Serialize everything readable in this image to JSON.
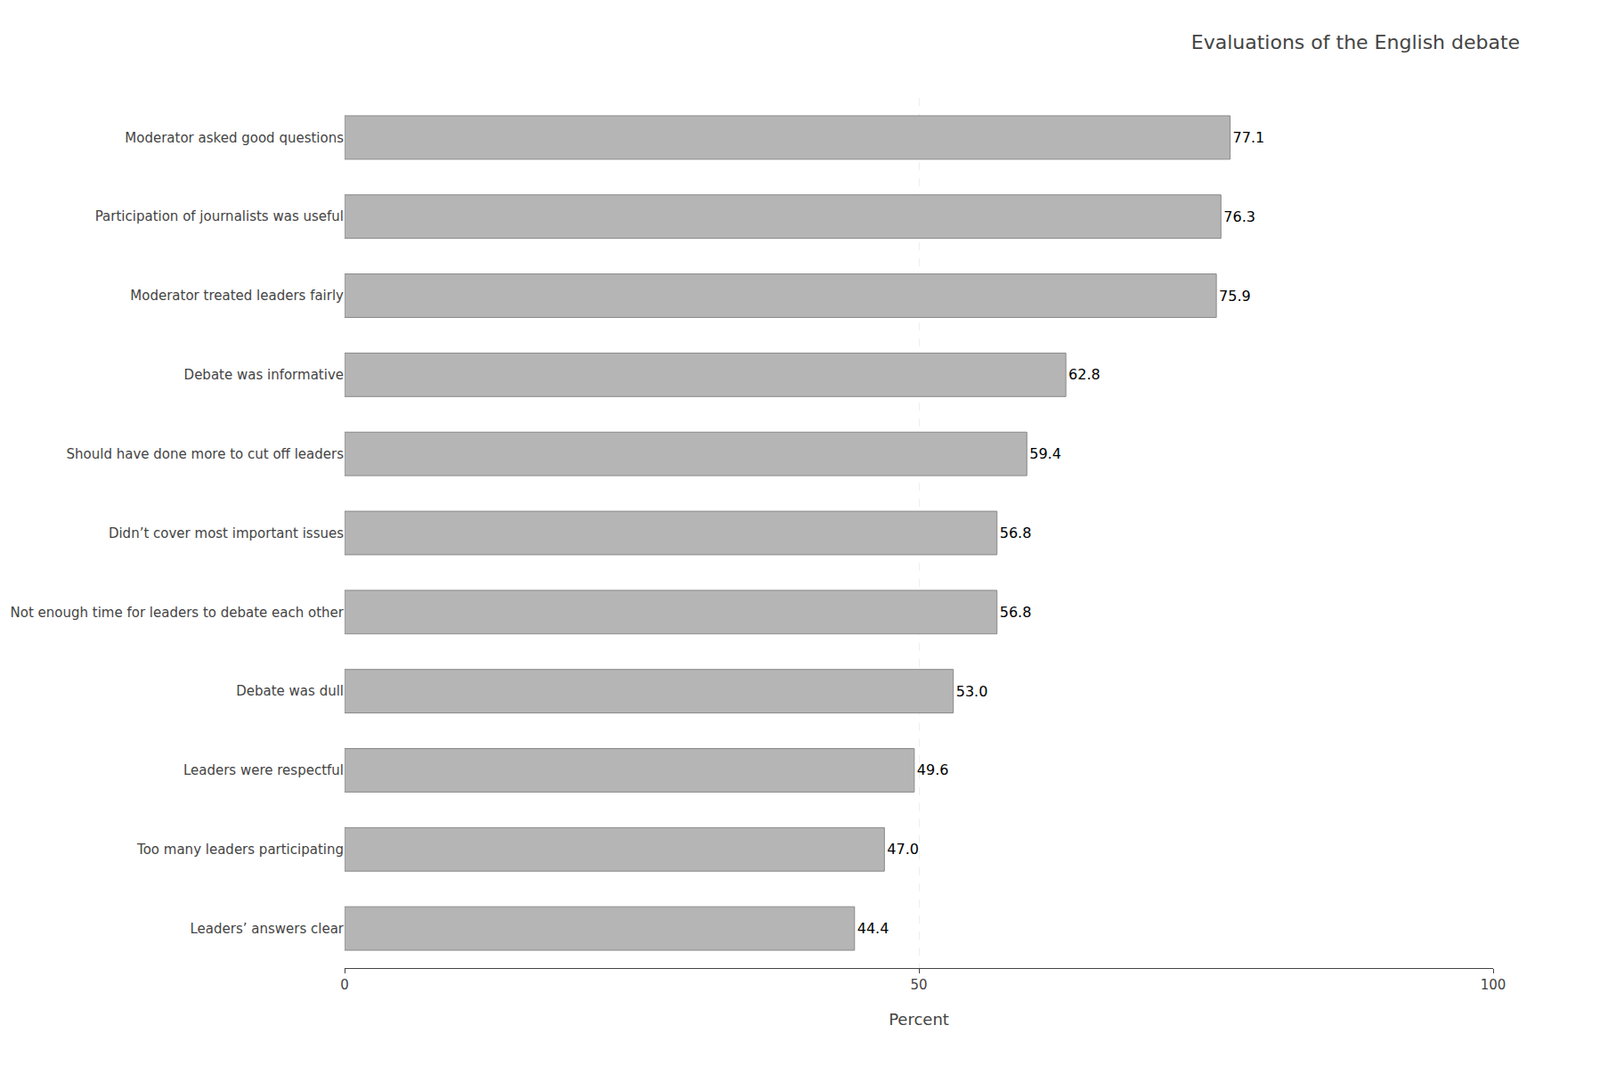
{
  "chart_data": {
    "type": "bar",
    "orientation": "horizontal",
    "title": "Evaluations of the English debate",
    "xlabel": "Percent",
    "categories": [
      "Leaders’ answers clear",
      "Too many leaders participating",
      "Leaders were respectful",
      "Debate was dull",
      "Not enough time for leaders to debate each other",
      "Didn’t cover most important issues",
      "Should have done more to cut off leaders",
      "Debate was informative",
      "Moderator treated leaders fairly",
      "Participation of journalists was useful",
      "Moderator asked good questions"
    ],
    "values": [
      44.4,
      47.0,
      49.6,
      53.0,
      56.8,
      56.8,
      59.4,
      62.8,
      75.9,
      76.3,
      77.1
    ],
    "value_labels": [
      "44.4",
      "47.0",
      "49.6",
      "53.0",
      "56.8",
      "56.8",
      "59.4",
      "62.8",
      "75.9",
      "76.3",
      "77.1"
    ],
    "data_labels": true,
    "color": "#b5b5b5",
    "xlim": [
      0,
      100
    ],
    "xticks": [
      0,
      50,
      100
    ],
    "grid": true
  }
}
